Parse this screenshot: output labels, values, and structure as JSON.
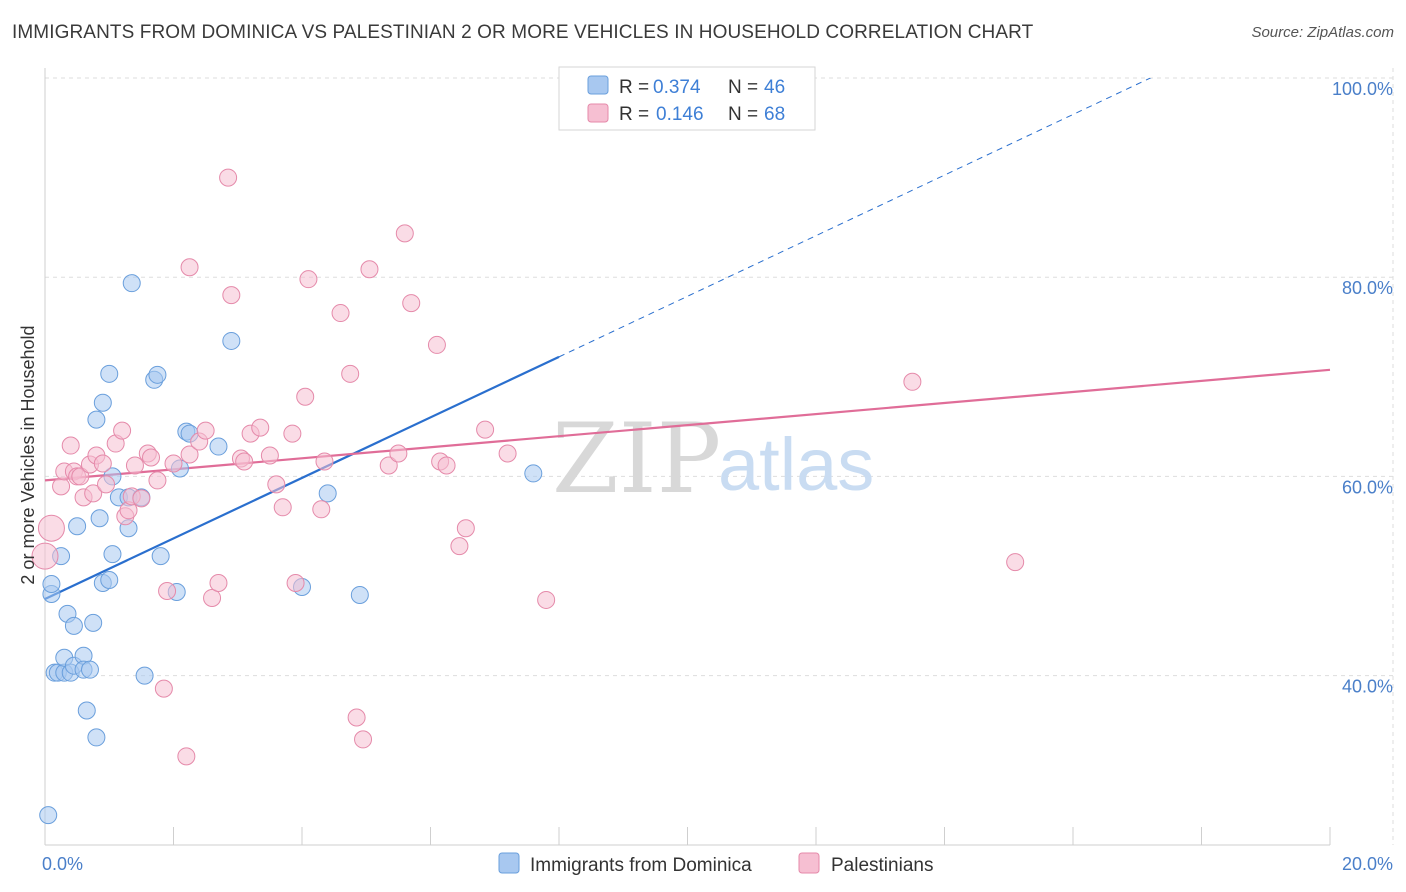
{
  "title": "IMMIGRANTS FROM DOMINICA VS PALESTINIAN 2 OR MORE VEHICLES IN HOUSEHOLD CORRELATION CHART",
  "source": "Source: ZipAtlas.com",
  "watermark": {
    "zip": "ZIP",
    "atlas": "atlas"
  },
  "colors": {
    "blue_fill": "#a8c8f0",
    "blue_stroke": "#6a9fdc",
    "blue_line": "#2a6fce",
    "pink_fill": "#f6bfd2",
    "pink_stroke": "#e58aaa",
    "pink_line": "#e06d98",
    "grid": "#dddddd",
    "tick_text": "#4a7fc9"
  },
  "legend_top": {
    "rows": [
      {
        "r_label": "R = ",
        "r_value": "0.374",
        "n_label": "N = ",
        "n_value": "46"
      },
      {
        "r_label": "R = ",
        "r_value": "0.146",
        "n_label": "N = ",
        "n_value": "68"
      }
    ]
  },
  "legend_bottom": [
    "Immigrants from Dominica",
    "Palestinians"
  ],
  "chart_data": {
    "type": "scatter",
    "title": "IMMIGRANTS FROM DOMINICA VS PALESTINIAN 2 OR MORE VEHICLES IN HOUSEHOLD CORRELATION CHART",
    "xlabel": "",
    "ylabel": "2 or more Vehicles in Household",
    "xlim": [
      0,
      20
    ],
    "ylim": [
      23,
      101
    ],
    "x_tick_labels": [
      {
        "v": 0,
        "t": "0.0%"
      },
      {
        "v": 20,
        "t": "20.0%"
      }
    ],
    "x_minor_ticks": [
      2,
      4,
      6,
      8,
      10,
      12,
      14,
      16,
      18,
      20
    ],
    "y_ticks": [
      {
        "v": 40,
        "t": "40.0%"
      },
      {
        "v": 60,
        "t": "60.0%"
      },
      {
        "v": 80,
        "t": "80.0%"
      },
      {
        "v": 100,
        "t": "100.0%"
      }
    ],
    "series": [
      {
        "name": "Immigrants from Dominica",
        "color": "blue",
        "points": [
          [
            0.05,
            26
          ],
          [
            0.1,
            48.2
          ],
          [
            0.1,
            49.2
          ],
          [
            0.15,
            40.3
          ],
          [
            0.2,
            40.3
          ],
          [
            0.25,
            52
          ],
          [
            0.3,
            40.3
          ],
          [
            0.3,
            41.8
          ],
          [
            0.35,
            46.2
          ],
          [
            0.4,
            40.3
          ],
          [
            0.45,
            41
          ],
          [
            0.45,
            45
          ],
          [
            0.5,
            55
          ],
          [
            0.6,
            42
          ],
          [
            0.6,
            40.6
          ],
          [
            0.65,
            36.5
          ],
          [
            0.7,
            40.6
          ],
          [
            0.75,
            45.3
          ],
          [
            0.8,
            33.8
          ],
          [
            0.8,
            65.7
          ],
          [
            0.85,
            55.8
          ],
          [
            0.9,
            67.4
          ],
          [
            0.9,
            49.3
          ],
          [
            1.0,
            70.3
          ],
          [
            1.0,
            49.6
          ],
          [
            1.05,
            60
          ],
          [
            1.05,
            52.2
          ],
          [
            1.15,
            57.9
          ],
          [
            1.3,
            54.8
          ],
          [
            1.3,
            57.9
          ],
          [
            1.5,
            57.9
          ],
          [
            1.55,
            40
          ],
          [
            1.7,
            69.7
          ],
          [
            1.75,
            70.2
          ],
          [
            1.8,
            52
          ],
          [
            2.05,
            48.4
          ],
          [
            2.1,
            60.8
          ],
          [
            2.2,
            64.5
          ],
          [
            2.7,
            63
          ],
          [
            2.9,
            73.6
          ],
          [
            4.0,
            48.9
          ],
          [
            4.4,
            58.3
          ],
          [
            4.9,
            48.1
          ],
          [
            1.35,
            79.4
          ],
          [
            7.6,
            60.3
          ],
          [
            2.25,
            64.3
          ]
        ]
      },
      {
        "name": "Palestinians",
        "color": "pink",
        "points": [
          [
            0.0,
            52
          ],
          [
            0.1,
            54.8
          ],
          [
            0.25,
            59
          ],
          [
            0.3,
            60.5
          ],
          [
            0.4,
            63.1
          ],
          [
            0.45,
            60.5
          ],
          [
            0.5,
            60
          ],
          [
            0.55,
            60
          ],
          [
            0.6,
            57.9
          ],
          [
            0.7,
            61.2
          ],
          [
            0.75,
            58.3
          ],
          [
            0.8,
            62.1
          ],
          [
            0.9,
            61.3
          ],
          [
            0.95,
            59.2
          ],
          [
            1.1,
            63.3
          ],
          [
            1.2,
            64.6
          ],
          [
            1.25,
            56
          ],
          [
            1.3,
            56.6
          ],
          [
            1.35,
            58
          ],
          [
            1.4,
            61.1
          ],
          [
            1.5,
            57.8
          ],
          [
            1.6,
            62.3
          ],
          [
            1.65,
            61.9
          ],
          [
            1.75,
            59.6
          ],
          [
            1.9,
            48.5
          ],
          [
            2.0,
            61.3
          ],
          [
            2.25,
            62.2
          ],
          [
            2.4,
            63.5
          ],
          [
            2.5,
            64.6
          ],
          [
            2.6,
            47.8
          ],
          [
            2.7,
            49.3
          ],
          [
            2.85,
            90
          ],
          [
            2.9,
            78.2
          ],
          [
            3.05,
            61.8
          ],
          [
            3.1,
            61.5
          ],
          [
            3.2,
            64.3
          ],
          [
            3.35,
            64.9
          ],
          [
            3.5,
            62.1
          ],
          [
            3.6,
            59.2
          ],
          [
            3.7,
            56.9
          ],
          [
            3.85,
            64.3
          ],
          [
            3.9,
            49.3
          ],
          [
            4.05,
            68
          ],
          [
            4.1,
            79.8
          ],
          [
            4.3,
            56.7
          ],
          [
            4.35,
            61.5
          ],
          [
            4.6,
            76.4
          ],
          [
            4.75,
            70.3
          ],
          [
            4.85,
            35.8
          ],
          [
            4.95,
            33.6
          ],
          [
            5.05,
            80.8
          ],
          [
            5.35,
            61.1
          ],
          [
            5.5,
            62.3
          ],
          [
            5.6,
            84.4
          ],
          [
            5.7,
            77.4
          ],
          [
            6.1,
            73.2
          ],
          [
            6.15,
            61.5
          ],
          [
            6.25,
            61.1
          ],
          [
            6.45,
            53
          ],
          [
            6.55,
            54.8
          ],
          [
            6.85,
            64.7
          ],
          [
            7.2,
            62.3
          ],
          [
            7.8,
            47.6
          ],
          [
            2.25,
            81
          ],
          [
            1.85,
            38.7
          ],
          [
            2.2,
            31.9
          ],
          [
            13.5,
            69.5
          ],
          [
            15.1,
            51.4
          ]
        ]
      }
    ],
    "trend_lines": [
      {
        "series": "Immigrants from Dominica",
        "solid": [
          [
            0,
            47.7
          ],
          [
            8.0,
            72
          ]
        ],
        "dashed": [
          [
            8.0,
            72
          ],
          [
            20,
            108.5
          ]
        ]
      },
      {
        "series": "Palestinians",
        "solid": [
          [
            0,
            59.6
          ],
          [
            20,
            70.7
          ]
        ]
      }
    ]
  }
}
